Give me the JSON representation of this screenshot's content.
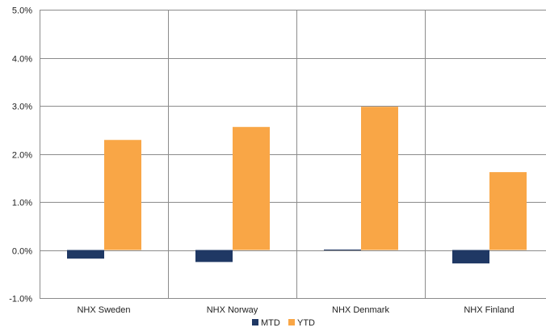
{
  "chart_data": {
    "type": "bar",
    "categories": [
      "NHX Sweden",
      "NHX Norway",
      "NHX Denmark",
      "NHX Finland"
    ],
    "series": [
      {
        "name": "MTD",
        "values": [
          -0.18,
          -0.25,
          0.01,
          -0.28
        ],
        "color": "#1F3864"
      },
      {
        "name": "YTD",
        "values": [
          2.29,
          2.56,
          2.98,
          1.62
        ],
        "color": "#F9A646"
      }
    ],
    "ylim": [
      -1.0,
      5.0
    ],
    "yticks": [
      -1.0,
      0.0,
      1.0,
      2.0,
      3.0,
      4.0,
      5.0
    ],
    "ytick_labels": [
      "-1.0%",
      "0.0%",
      "1.0%",
      "2.0%",
      "3.0%",
      "4.0%",
      "5.0%"
    ],
    "title": "",
    "xlabel": "",
    "ylabel": "",
    "legend": {
      "position": "bottom"
    },
    "grid": {
      "horizontal": true,
      "vertical_category_dividers": true
    }
  }
}
